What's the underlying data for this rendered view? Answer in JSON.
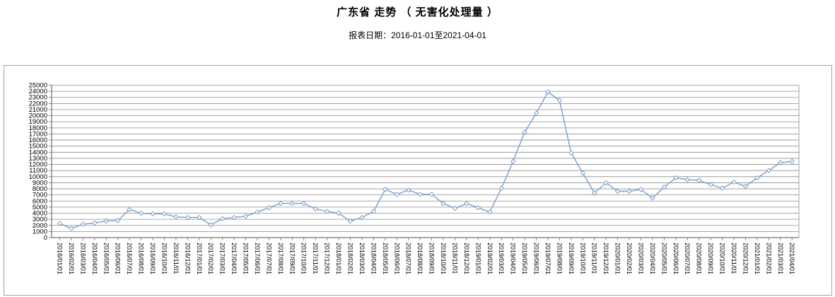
{
  "header": {
    "title": "广东省 走势 （ 无害化处理量 ）",
    "subtitle": "报表日期：2016-01-01至2021-04-01"
  },
  "chart_data": {
    "type": "line",
    "title": "广东省 走势 （ 无害化处理量 ）",
    "subtitle": "报表日期：2016-01-01至2021-04-01",
    "xlabel": "",
    "ylabel": "",
    "ylim": [
      0,
      25000
    ],
    "y_tick_step": 1000,
    "grid": true,
    "legend_position": "none",
    "categories": [
      "2016/01/01",
      "2016/02/01",
      "2016/03/01",
      "2016/04/01",
      "2016/05/01",
      "2016/06/01",
      "2016/07/01",
      "2016/08/01",
      "2016/09/01",
      "2016/10/01",
      "2016/11/01",
      "2016/12/01",
      "2017/01/01",
      "2017/02/01",
      "2017/03/01",
      "2017/04/01",
      "2017/05/01",
      "2017/06/01",
      "2017/07/01",
      "2017/08/01",
      "2017/09/01",
      "2017/10/01",
      "2017/11/01",
      "2017/12/01",
      "2018/01/01",
      "2018/02/01",
      "2018/03/01",
      "2018/04/01",
      "2018/05/01",
      "2018/06/01",
      "2018/07/01",
      "2018/08/01",
      "2018/09/01",
      "2018/10/01",
      "2018/11/01",
      "2018/12/01",
      "2019/01/01",
      "2019/02/01",
      "2019/03/01",
      "2019/04/01",
      "2019/05/01",
      "2019/06/01",
      "2019/07/01",
      "2019/08/01",
      "2019/09/01",
      "2019/10/01",
      "2019/11/01",
      "2019/12/01",
      "2020/01/01",
      "2020/02/01",
      "2020/03/01",
      "2020/04/01",
      "2020/05/01",
      "2020/06/01",
      "2020/07/01",
      "2020/08/01",
      "2020/09/01",
      "2020/10/01",
      "2020/11/01",
      "2020/12/01",
      "2021/01/01",
      "2021/02/01",
      "2021/03/01",
      "2021/04/01"
    ],
    "series": [
      {
        "name": "无害化处理量",
        "values": [
          2300,
          1500,
          2200,
          2400,
          2700,
          2800,
          4600,
          4000,
          3900,
          3900,
          3400,
          3300,
          3300,
          2100,
          3100,
          3300,
          3500,
          4200,
          4900,
          5600,
          5600,
          5600,
          4700,
          4300,
          4000,
          2700,
          3300,
          4300,
          7900,
          7100,
          7800,
          7100,
          7100,
          5600,
          4800,
          5600,
          4900,
          4200,
          8100,
          12500,
          17300,
          20400,
          23900,
          22500,
          13900,
          10600,
          7300,
          9000,
          7600,
          7600,
          7900,
          6500,
          8300,
          9800,
          9500,
          9400,
          8700,
          8100,
          9100,
          8400,
          9800,
          11000,
          12300,
          12500
        ]
      }
    ],
    "colors": {
      "line": "#7d9dca",
      "marker_fill": "#ffffff",
      "grid": "#8c8c8c",
      "axis": "#6e6e6e",
      "box_border": "#a3a3a3",
      "text": "#000000"
    }
  }
}
